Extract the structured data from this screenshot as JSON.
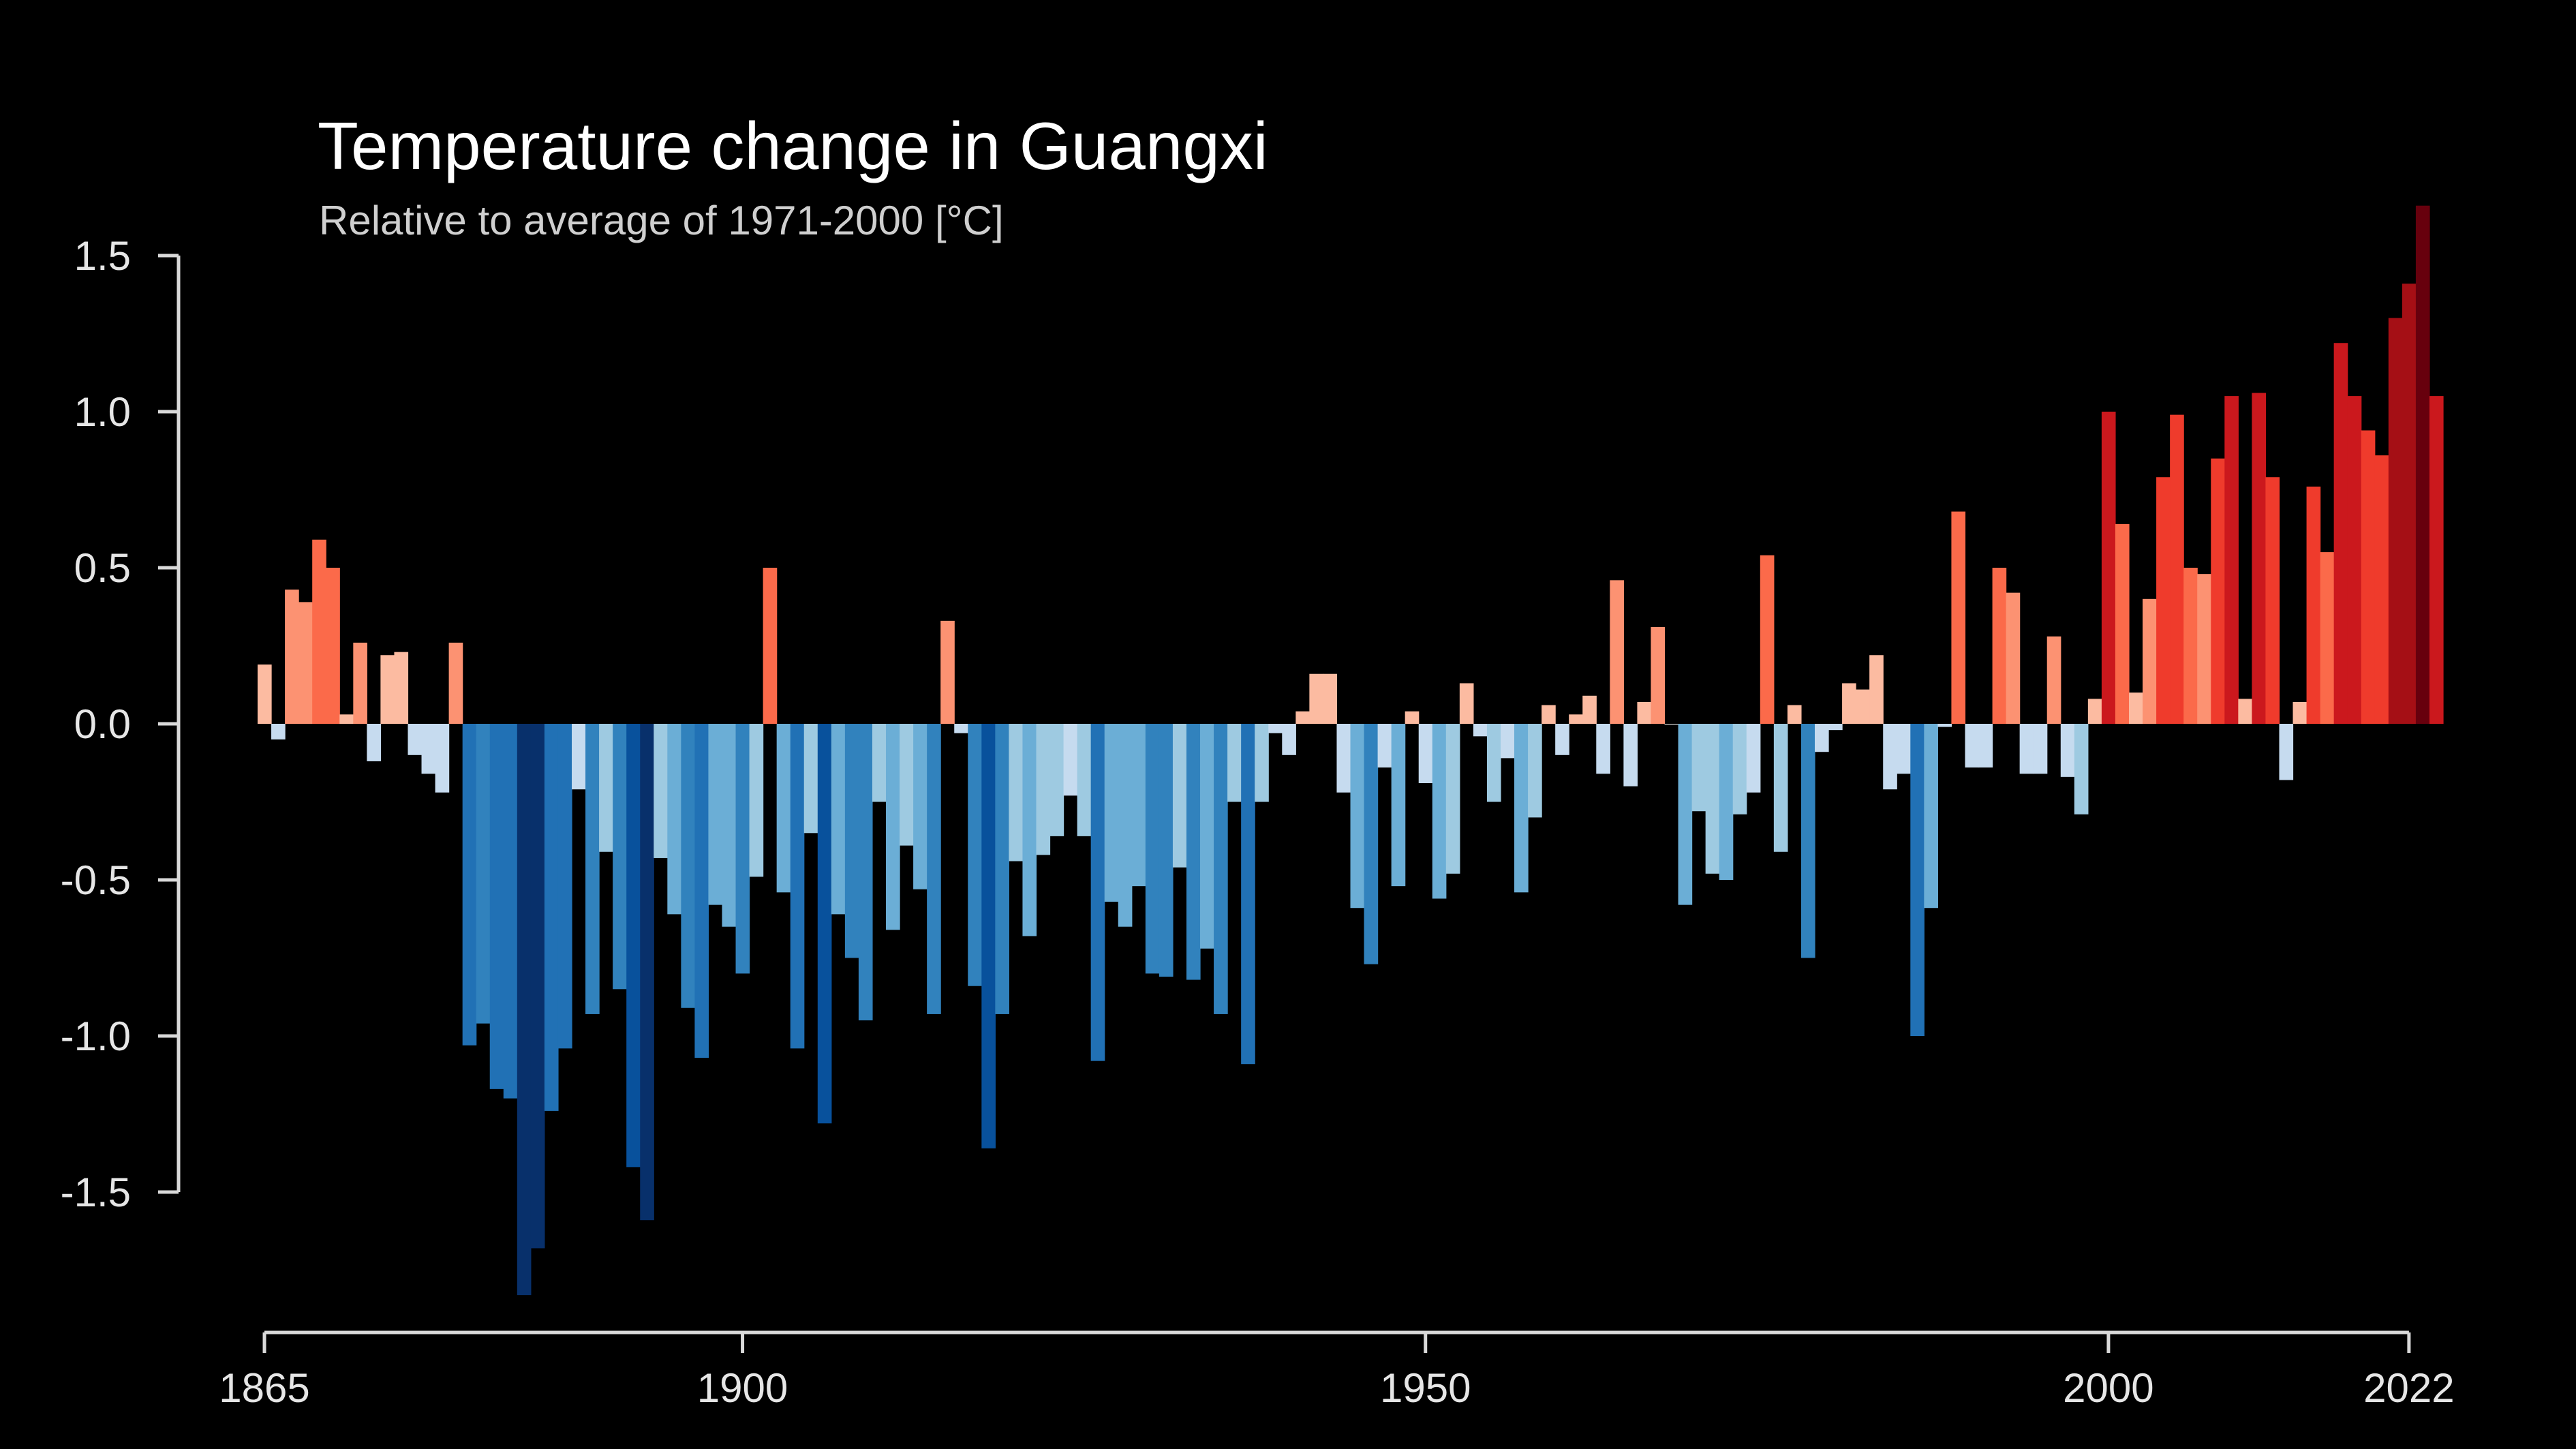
{
  "chart_data": {
    "type": "bar",
    "title": "Temperature change in Guangxi",
    "subtitle": "Relative to average of 1971-2000  [°C]",
    "xlabel": "",
    "ylabel": "",
    "x_start": 1865,
    "x_end": 2022,
    "xlim": [
      1865,
      2022
    ],
    "ylim": [
      -1.95,
      1.6
    ],
    "y_ticks": [
      "1.5",
      "1.0",
      "0.5",
      "0.0",
      "-0.5",
      "-1.0",
      "-1.5"
    ],
    "y_tick_values": [
      1.5,
      1.0,
      0.5,
      0.0,
      -0.5,
      -1.0,
      -1.5
    ],
    "x_ticks": [
      "1865",
      "1900",
      "1950",
      "2000",
      "2022"
    ],
    "x_tick_values": [
      1865,
      1900,
      1950,
      2000,
      2022
    ],
    "grid": false,
    "legend": "none",
    "colors": {
      "background": "#000000",
      "warm_scale": [
        "#fcbba1",
        "#fc9272",
        "#fb6a4a",
        "#ef3b2c",
        "#cb181d",
        "#a50f15",
        "#67000d"
      ],
      "cool_scale": [
        "#c6dbef",
        "#9ecae1",
        "#6baed6",
        "#3182bd",
        "#2171b5",
        "#08519c",
        "#08306b"
      ],
      "near_zero": "#ffffff"
    },
    "values": [
      0.19,
      -0.05,
      0.43,
      0.39,
      0.59,
      0.5,
      0.03,
      0.26,
      -0.12,
      0.22,
      0.23,
      -0.1,
      -0.16,
      -0.22,
      0.26,
      -1.03,
      -0.96,
      -1.17,
      -1.2,
      -1.83,
      -1.68,
      -1.24,
      -1.04,
      -0.21,
      -0.93,
      -0.41,
      -0.85,
      -1.42,
      -1.59,
      -0.43,
      -0.61,
      -0.91,
      -1.07,
      -0.58,
      -0.65,
      -0.8,
      -0.49,
      0.5,
      -0.54,
      -1.04,
      -0.35,
      -1.28,
      -0.61,
      -0.75,
      -0.95,
      -0.25,
      -0.66,
      -0.39,
      -0.53,
      -0.93,
      0.33,
      -0.03,
      -0.84,
      -1.36,
      -0.93,
      -0.44,
      -0.68,
      -0.42,
      -0.36,
      -0.23,
      -0.36,
      -1.08,
      -0.57,
      -0.65,
      -0.52,
      -0.8,
      -0.81,
      -0.46,
      -0.82,
      -0.72,
      -0.93,
      -0.25,
      -1.09,
      -0.25,
      -0.03,
      -0.1,
      0.04,
      0.16,
      0.16,
      -0.22,
      -0.59,
      -0.77,
      -0.14,
      -0.52,
      0.04,
      -0.19,
      -0.56,
      -0.48,
      0.13,
      -0.04,
      -0.25,
      -0.11,
      -0.54,
      -0.3,
      0.06,
      -0.1,
      0.03,
      0.09,
      -0.16,
      0.46,
      -0.2,
      0.07,
      0.31,
      0.0,
      -0.58,
      -0.28,
      -0.48,
      -0.5,
      -0.29,
      -0.22,
      0.54,
      -0.41,
      0.06,
      -0.75,
      -0.09,
      -0.02,
      0.13,
      0.11,
      0.22,
      -0.21,
      -0.16,
      -1.0,
      -0.59,
      -0.01,
      0.68,
      -0.14,
      -0.14,
      0.5,
      0.42,
      -0.16,
      -0.16,
      0.28,
      -0.17,
      -0.29,
      0.08,
      1.0,
      0.64,
      0.1,
      0.4,
      0.79,
      0.99,
      0.5,
      0.48,
      0.85,
      1.05,
      0.08,
      1.06,
      0.79,
      -0.18,
      0.07,
      0.76,
      0.55,
      1.22,
      1.05,
      0.94,
      0.86,
      1.3,
      1.41,
      1.66,
      1.05
    ]
  }
}
